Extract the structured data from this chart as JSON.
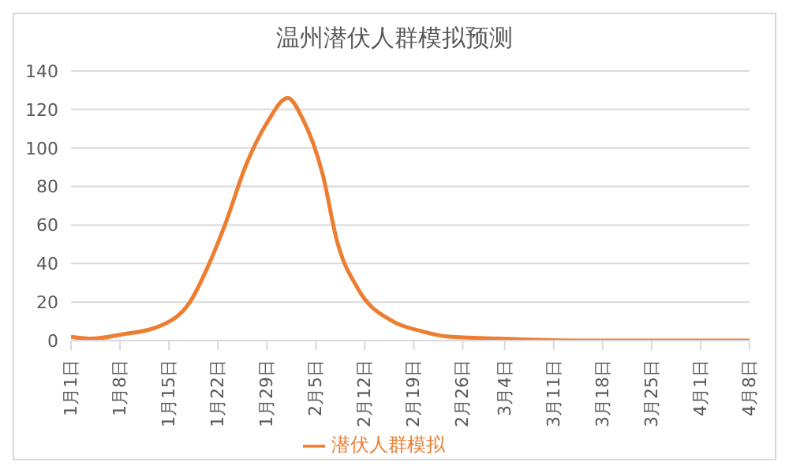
{
  "chart_data": {
    "type": "line",
    "title": "温州潜伏人群模拟预测",
    "x": [
      "--01-01",
      "--01-04",
      "--01-08",
      "--01-14",
      "--01-18",
      "--01-21",
      "--01-23",
      "--01-26",
      "--01-29",
      "--02-01",
      "--02-03",
      "--02-06",
      "--02-08",
      "--02-11",
      "--02-16",
      "--02-20",
      "--02-24",
      "--03-03",
      "--03-15",
      "--04-08"
    ],
    "series": [
      {
        "name": "潜伏人群模拟",
        "color": "#ed7d31",
        "values": [
          2,
          1,
          3,
          8,
          20,
          42,
          60,
          91,
          113,
          126,
          116,
          86,
          52,
          27,
          10,
          5,
          2,
          1,
          0,
          0
        ]
      }
    ],
    "xlim": [
      "--01-01",
      "--04-08"
    ],
    "xticks": [
      {
        "value": "--01-01",
        "label": "1月1日"
      },
      {
        "value": "--01-08",
        "label": "1月8日"
      },
      {
        "value": "--01-15",
        "label": "1月15日"
      },
      {
        "value": "--01-22",
        "label": "1月22日"
      },
      {
        "value": "--01-29",
        "label": "1月29日"
      },
      {
        "value": "--02-05",
        "label": "2月5日"
      },
      {
        "value": "--02-12",
        "label": "2月12日"
      },
      {
        "value": "--02-19",
        "label": "2月19日"
      },
      {
        "value": "--02-26",
        "label": "2月26日"
      },
      {
        "value": "--03-04",
        "label": "3月4日"
      },
      {
        "value": "--03-11",
        "label": "3月11日"
      },
      {
        "value": "--03-18",
        "label": "3月18日"
      },
      {
        "value": "--03-25",
        "label": "3月25日"
      },
      {
        "value": "--04-01",
        "label": "4月1日"
      },
      {
        "value": "--04-08",
        "label": "4月8日"
      }
    ],
    "ylim": [
      0,
      140
    ],
    "yticks": [
      0,
      20,
      40,
      60,
      80,
      100,
      120,
      140
    ],
    "grid": "y",
    "legend": "bottom",
    "marker": "none",
    "line_style": "solid"
  }
}
